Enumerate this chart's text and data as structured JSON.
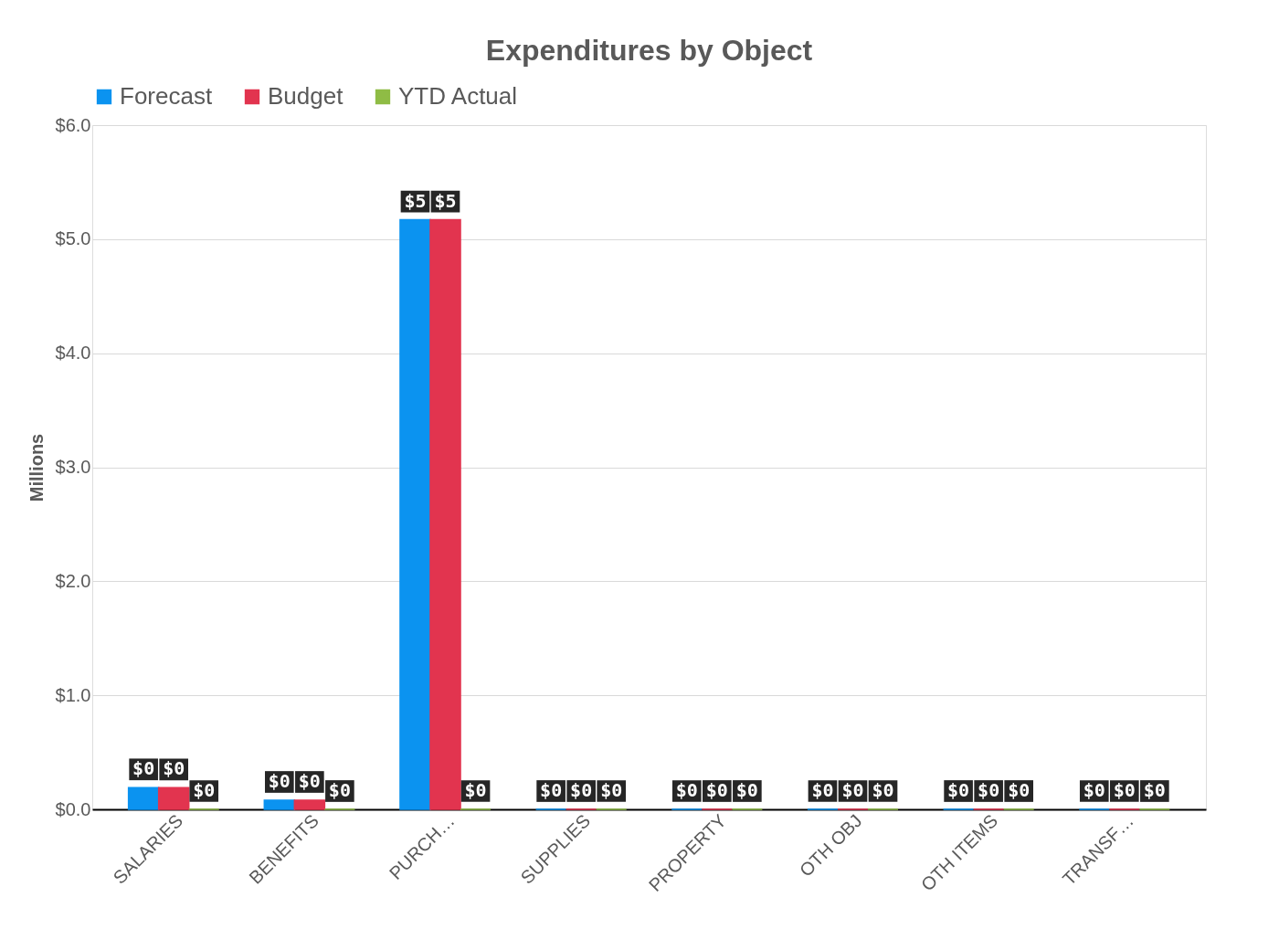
{
  "chart_data": {
    "type": "bar",
    "title": "Expenditures by Object",
    "ylabel": "Millions",
    "categories": [
      "SALARIES",
      "BENEFITS",
      "PURCH…",
      "SUPPLIES",
      "PROPERTY",
      "OTH OBJ",
      "OTH ITEMS",
      "TRANSF…"
    ],
    "series": [
      {
        "name": "Forecast",
        "color": "#0b93f0",
        "values": [
          0.19,
          0.08,
          5.17,
          0,
          0,
          0,
          0,
          0
        ],
        "value_labels": [
          "$0",
          "$0",
          "$5",
          "$0",
          "$0",
          "$0",
          "$0",
          "$0"
        ]
      },
      {
        "name": "Budget",
        "color": "#e2344f",
        "values": [
          0.19,
          0.08,
          5.17,
          0,
          0,
          0,
          0,
          0
        ],
        "value_labels": [
          "$0",
          "$0",
          "$5",
          "$0",
          "$0",
          "$0",
          "$0",
          "$0"
        ]
      },
      {
        "name": "YTD Actual",
        "color": "#8fbc45",
        "values": [
          0,
          0,
          0,
          0,
          0,
          0,
          0,
          0
        ],
        "value_labels": [
          "$0",
          "$0",
          "$0",
          "$0",
          "$0",
          "$0",
          "$0",
          "$0"
        ]
      }
    ],
    "ylim": [
      0,
      6
    ],
    "yticks": [
      {
        "value": 0,
        "label": "$0.0"
      },
      {
        "value": 1,
        "label": "$1.0"
      },
      {
        "value": 2,
        "label": "$2.0"
      },
      {
        "value": 3,
        "label": "$3.0"
      },
      {
        "value": 4,
        "label": "$4.0"
      },
      {
        "value": 5,
        "label": "$5.0"
      },
      {
        "value": 6,
        "label": "$6.0"
      }
    ],
    "grid": "y",
    "legend": "top"
  }
}
